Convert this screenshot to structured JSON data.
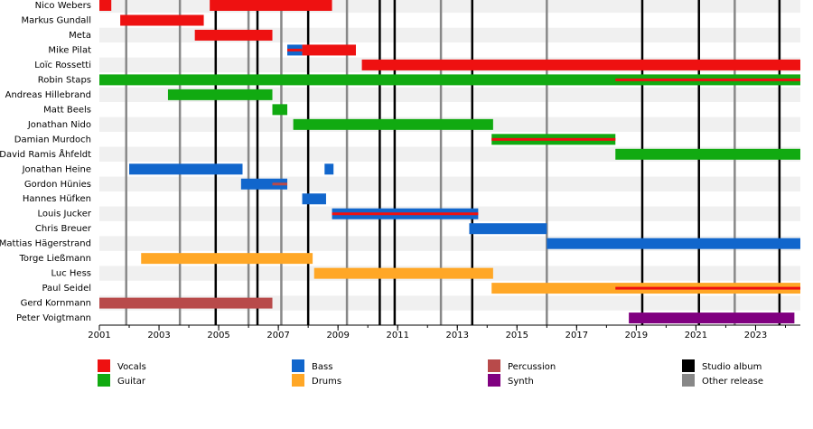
{
  "chart_data": {
    "type": "timeline",
    "xlim": [
      2001,
      2024.5
    ],
    "xticks": [
      2001,
      2003,
      2005,
      2007,
      2009,
      2011,
      2013,
      2015,
      2017,
      2019,
      2021,
      2023
    ],
    "roles": [
      {
        "name": "Vocals",
        "color": "#ee1111"
      },
      {
        "name": "Guitar",
        "color": "#11aa11"
      },
      {
        "name": "Bass",
        "color": "#1166cc"
      },
      {
        "name": "Drums",
        "color": "#ffa726"
      },
      {
        "name": "Percussion",
        "color": "#b84a4a"
      },
      {
        "name": "Synth",
        "color": "#800080"
      }
    ],
    "events": [
      {
        "name": "Studio album",
        "color": "#000000",
        "dates": [
          2004.9,
          2006.3,
          2008.0,
          2010.4,
          2010.9,
          2013.5,
          2019.2,
          2021.1,
          2023.8
        ]
      },
      {
        "name": "Other release",
        "color": "#888888",
        "dates": [
          2001.9,
          2003.7,
          2006.0,
          2007.1,
          2009.3,
          2012.45,
          2016.0,
          2022.3
        ]
      }
    ],
    "members": [
      {
        "name": "Nico Webers",
        "spans": [
          {
            "role": "Vocals",
            "start": 2001,
            "end": 2001.4
          },
          {
            "role": "Vocals",
            "start": 2004.7,
            "end": 2008.8
          }
        ]
      },
      {
        "name": "Markus Gundall",
        "spans": [
          {
            "role": "Vocals",
            "start": 2001.7,
            "end": 2004.5
          }
        ]
      },
      {
        "name": "Meta",
        "spans": [
          {
            "role": "Vocals",
            "start": 2004.2,
            "end": 2006.8
          }
        ]
      },
      {
        "name": "Mike Pilat",
        "spans": [
          {
            "role": "Bass",
            "start": 2007.3,
            "end": 2007.8
          },
          {
            "role": "Vocals",
            "start": 2007.3,
            "end": 2007.8,
            "stripe": true
          },
          {
            "role": "Vocals",
            "start": 2007.8,
            "end": 2009.6
          }
        ]
      },
      {
        "name": "Loïc Rossetti",
        "spans": [
          {
            "role": "Vocals",
            "start": 2009.8,
            "end": 2024.5
          }
        ]
      },
      {
        "name": "Robin Staps",
        "spans": [
          {
            "role": "Guitar",
            "start": 2001,
            "end": 2024.5
          },
          {
            "role": "Vocals",
            "start": 2018.3,
            "end": 2024.5,
            "stripe": true
          }
        ]
      },
      {
        "name": "Andreas Hillebrand",
        "spans": [
          {
            "role": "Guitar",
            "start": 2003.3,
            "end": 2006.8
          }
        ]
      },
      {
        "name": "Matt Beels",
        "spans": [
          {
            "role": "Guitar",
            "start": 2006.8,
            "end": 2007.3
          }
        ]
      },
      {
        "name": "Jonathan Nido",
        "spans": [
          {
            "role": "Guitar",
            "start": 2007.5,
            "end": 2014.2
          }
        ]
      },
      {
        "name": "Damian Murdoch",
        "spans": [
          {
            "role": "Guitar",
            "start": 2014.15,
            "end": 2018.3
          },
          {
            "role": "Vocals",
            "start": 2014.15,
            "end": 2018.3,
            "stripe": true
          }
        ]
      },
      {
        "name": "David Ramis Åhfeldt",
        "spans": [
          {
            "role": "Guitar",
            "start": 2018.3,
            "end": 2024.5
          }
        ]
      },
      {
        "name": "Jonathan Heine",
        "spans": [
          {
            "role": "Bass",
            "start": 2002,
            "end": 2005.8
          },
          {
            "role": "Bass",
            "start": 2008.55,
            "end": 2008.85
          }
        ]
      },
      {
        "name": "Gordon Hünies",
        "spans": [
          {
            "role": "Bass",
            "start": 2005.75,
            "end": 2007.3
          },
          {
            "role": "Percussion",
            "start": 2006.8,
            "end": 2007.3,
            "stripe": true
          }
        ]
      },
      {
        "name": "Hannes Hüfken",
        "spans": [
          {
            "role": "Bass",
            "start": 2007.8,
            "end": 2008.6
          }
        ]
      },
      {
        "name": "Louis Jucker",
        "spans": [
          {
            "role": "Bass",
            "start": 2008.8,
            "end": 2013.7
          },
          {
            "role": "Vocals",
            "start": 2008.8,
            "end": 2013.7,
            "stripe": true
          }
        ]
      },
      {
        "name": "Chris Breuer",
        "spans": [
          {
            "role": "Bass",
            "start": 2013.4,
            "end": 2016
          }
        ]
      },
      {
        "name": "Mattias Hägerstrand",
        "spans": [
          {
            "role": "Bass",
            "start": 2016,
            "end": 2024.5
          }
        ]
      },
      {
        "name": "Torge Ließmann",
        "spans": [
          {
            "role": "Drums",
            "start": 2002.4,
            "end": 2008.15
          }
        ]
      },
      {
        "name": "Luc Hess",
        "spans": [
          {
            "role": "Drums",
            "start": 2008.2,
            "end": 2014.2
          }
        ]
      },
      {
        "name": "Paul Seidel",
        "spans": [
          {
            "role": "Drums",
            "start": 2014.15,
            "end": 2024.5
          },
          {
            "role": "Vocals",
            "start": 2018.3,
            "end": 2024.5,
            "stripe": true
          }
        ]
      },
      {
        "name": "Gerd Kornmann",
        "spans": [
          {
            "role": "Percussion",
            "start": 2001,
            "end": 2006.8
          }
        ]
      },
      {
        "name": "Peter Voigtmann",
        "spans": [
          {
            "role": "Synth",
            "start": 2018.75,
            "end": 2024.3
          }
        ]
      }
    ]
  }
}
